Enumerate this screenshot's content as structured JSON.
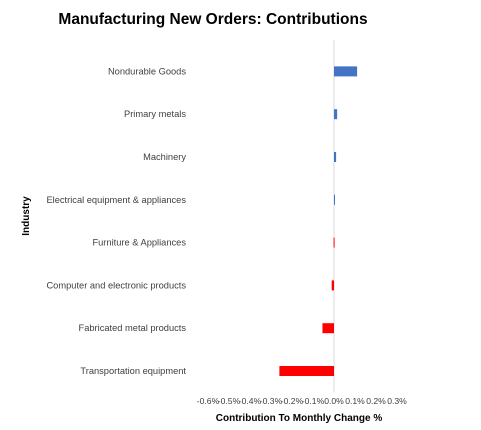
{
  "chart_data": {
    "type": "bar",
    "orientation": "horizontal",
    "title": "Manufacturing New Orders: Contributions",
    "xlabel": "Contribution To Monthly Change %",
    "ylabel": "Industry",
    "categories": [
      "Nondurable Goods",
      "Primary metals",
      "Machinery",
      "Electrical equipment & appliances",
      "Furniture & Appliances",
      "Computer and electronic products",
      "Fabricated metal products",
      "Transportation equipment"
    ],
    "values": [
      0.11,
      0.015,
      0.01,
      0.002,
      -0.002,
      -0.011,
      -0.055,
      -0.26
    ],
    "xlim": [
      -0.6,
      0.3
    ],
    "xticks": [
      "-0.6%",
      "-0.5%",
      "-0.4%",
      "-0.3%",
      "-0.2%",
      "-0.1%",
      "0.0%",
      "0.1%",
      "0.2%",
      "0.3%"
    ],
    "colors": {
      "positive": "#4472C4",
      "negative": "#FF0000",
      "zero_line": "#D9D9D9"
    },
    "grid": false,
    "legend": "none"
  }
}
